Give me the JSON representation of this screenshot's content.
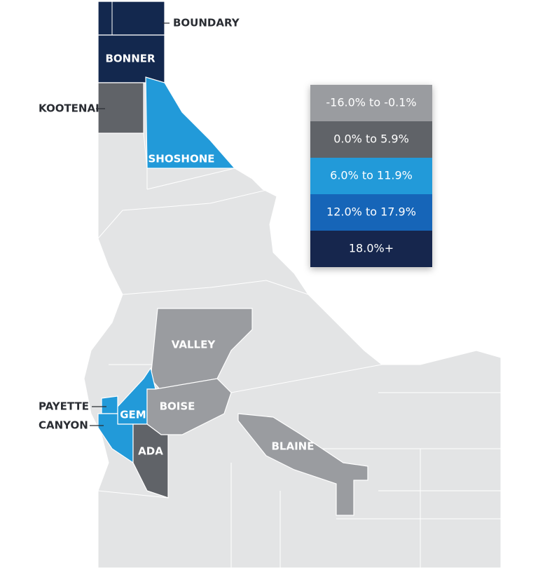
{
  "legend": {
    "items": [
      {
        "label": "-16.0% to -0.1%",
        "color": "#9a9ca0"
      },
      {
        "label": "0.0% to 5.9%",
        "color": "#606368"
      },
      {
        "label": "6.0% to 11.9%",
        "color": "#229ad9"
      },
      {
        "label": "12.0% to 17.9%",
        "color": "#1565b8"
      },
      {
        "label": "18.0%+",
        "color": "#13284e"
      }
    ]
  },
  "counties": [
    {
      "name": "BOUNDARY",
      "color": "#13284e"
    },
    {
      "name": "BONNER",
      "color": "#13284e"
    },
    {
      "name": "KOOTENAI",
      "color": "#606368"
    },
    {
      "name": "SHOSHONE",
      "color": "#229ad9"
    },
    {
      "name": "VALLEY",
      "color": "#9a9ca0"
    },
    {
      "name": "PAYETTE",
      "color": "#229ad9"
    },
    {
      "name": "GEM",
      "color": "#229ad9"
    },
    {
      "name": "BOISE",
      "color": "#9a9ca0"
    },
    {
      "name": "CANYON",
      "color": "#229ad9"
    },
    {
      "name": "ADA",
      "color": "#606368"
    },
    {
      "name": "BLAINE",
      "color": "#9a9ca0"
    }
  ]
}
